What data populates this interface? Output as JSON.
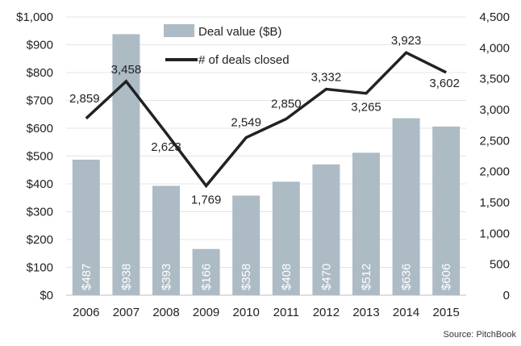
{
  "chart_data": {
    "type": "bar",
    "categories": [
      "2006",
      "2007",
      "2008",
      "2009",
      "2010",
      "2011",
      "2012",
      "2013",
      "2014",
      "2015"
    ],
    "series": [
      {
        "name": "Deal value ($B)",
        "type": "bar",
        "axis": "left",
        "values": [
          487,
          938,
          393,
          166,
          358,
          408,
          470,
          512,
          636,
          606
        ],
        "labels": [
          "$487",
          "$938",
          "$393",
          "$166",
          "$358",
          "$408",
          "$470",
          "$512",
          "$636",
          "$606"
        ],
        "color": "#adbbc5"
      },
      {
        "name": "# of deals closed",
        "type": "line",
        "axis": "right",
        "values": [
          2859,
          3458,
          2623,
          1769,
          2549,
          2850,
          3332,
          3265,
          3923,
          3602
        ],
        "labels": [
          "2,859",
          "3,458",
          "2,623",
          "1,769",
          "2,549",
          "2,850",
          "3,332",
          "3,265",
          "3,923",
          "3,602"
        ],
        "color": "#222222"
      }
    ],
    "y_left": {
      "ylim": [
        0,
        1000
      ],
      "ticks": [
        "$0",
        "$100",
        "$200",
        "$300",
        "$400",
        "$500",
        "$600",
        "$700",
        "$800",
        "$900",
        "$1,000"
      ]
    },
    "y_right": {
      "ylim": [
        0,
        4500
      ],
      "ticks": [
        "0",
        "500",
        "1,000",
        "1,500",
        "2,000",
        "2,500",
        "3,000",
        "3,500",
        "4,000",
        "4,500"
      ]
    },
    "grid": true,
    "legend_position": "top-center",
    "source": "Source: PitchBook"
  }
}
